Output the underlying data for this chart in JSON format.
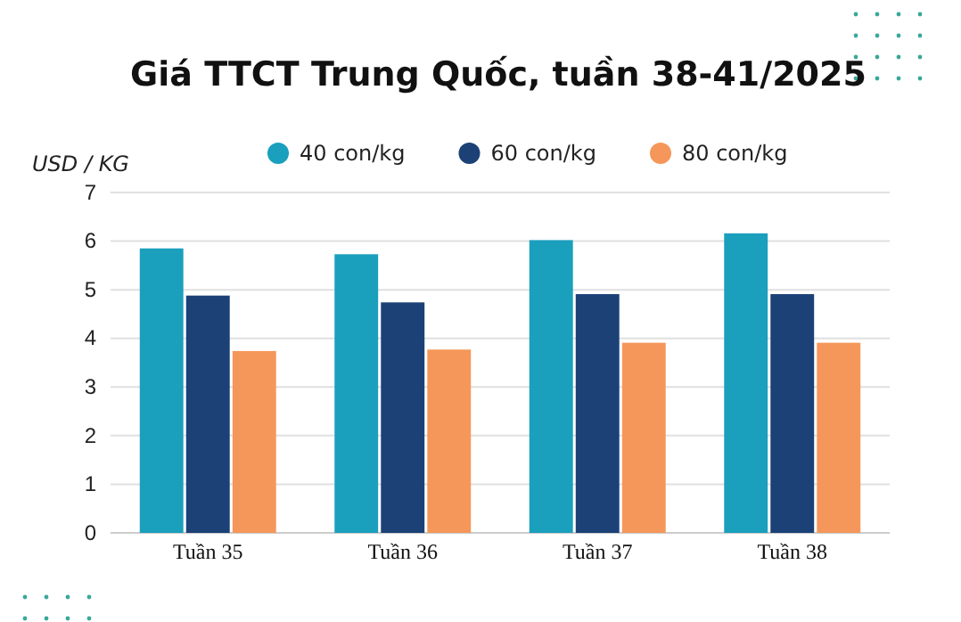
{
  "chart_data": {
    "type": "bar",
    "title": "Giá TTCT Trung Quốc, tuần 38-41/2025",
    "ylabel": "USD / KG",
    "categories": [
      "Tuần 35",
      "Tuần 36",
      "Tuần 37",
      "Tuần 38"
    ],
    "series": [
      {
        "name": "40 con/kg",
        "color": "#1a9fbd",
        "values": [
          5.85,
          5.73,
          6.02,
          6.16
        ]
      },
      {
        "name": "60 con/kg",
        "color": "#1b4176",
        "values": [
          4.88,
          4.74,
          4.91,
          4.91
        ]
      },
      {
        "name": "80 con/kg",
        "color": "#f5975a",
        "values": [
          3.74,
          3.77,
          3.91,
          3.91
        ]
      }
    ],
    "ylim": [
      0,
      7
    ],
    "yticks": [
      0,
      1,
      2,
      3,
      4,
      5,
      6,
      7
    ],
    "grid": "y",
    "legend": "top"
  }
}
